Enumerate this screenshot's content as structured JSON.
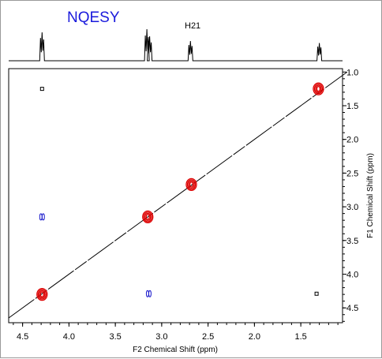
{
  "chart_data": {
    "type": "scatter",
    "title": "NQESY",
    "xlabel": "F2 Chemical Shift (ppm)",
    "ylabel": "F1 Chemical Shift (ppm)",
    "xlim": [
      4.65,
      1.05
    ],
    "ylim": [
      0.95,
      4.72
    ],
    "x_ticks": [
      "4.5",
      "4.0",
      "3.5",
      "3.0",
      "2.5",
      "2.0",
      "1.5"
    ],
    "x_tick_values": [
      4.5,
      4.0,
      3.5,
      3.0,
      2.5,
      2.0,
      1.5
    ],
    "y_ticks": [
      "1.0",
      "1.5",
      "2.0",
      "2.5",
      "3.0",
      "3.5",
      "4.0",
      "4.5"
    ],
    "y_tick_values": [
      1.0,
      1.5,
      2.0,
      2.5,
      3.0,
      3.5,
      4.0,
      4.5
    ],
    "grid": false,
    "colors": {
      "title": "#1a1adc",
      "diagonal_peak": "#dd0000",
      "cross_peak_blue": "#1a1acc",
      "cross_peak_black": "#000000"
    },
    "peak_label": "H21",
    "spectrum_1d": [
      {
        "shift": 4.29,
        "height": 0.72
      },
      {
        "shift": 3.16,
        "height": 0.8
      },
      {
        "shift": 3.13,
        "height": 0.62
      },
      {
        "shift": 2.69,
        "height": 0.5
      },
      {
        "shift": 1.3,
        "height": 0.45
      }
    ],
    "diagonal_peaks": [
      {
        "f2": 4.29,
        "f1": 4.3
      },
      {
        "f2": 3.15,
        "f1": 3.15
      },
      {
        "f2": 2.68,
        "f1": 2.67
      },
      {
        "f2": 1.31,
        "f1": 1.25
      }
    ],
    "cross_peaks": [
      {
        "f2": 4.29,
        "f1": 3.15,
        "color": "blue"
      },
      {
        "f2": 3.14,
        "f1": 4.29,
        "color": "blue"
      },
      {
        "f2": 4.29,
        "f1": 1.25,
        "color": "black"
      },
      {
        "f2": 1.33,
        "f1": 4.29,
        "color": "black"
      }
    ]
  }
}
